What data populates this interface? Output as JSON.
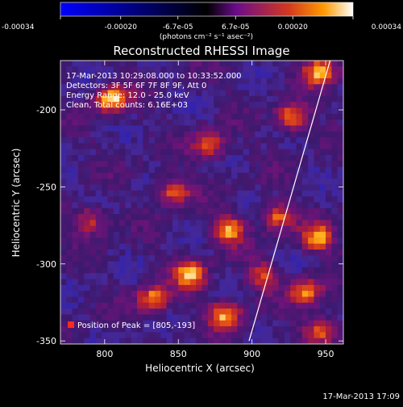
{
  "colorbar": {
    "tick_labels": [
      "-0.00034",
      "-0.00020",
      "-6.7e-05",
      "6.7e-05",
      "0.00020",
      "0.00034"
    ],
    "tick_values": [
      -0.00034,
      -0.0002,
      -6.7e-05,
      6.7e-05,
      0.0002,
      0.00034
    ],
    "range": [
      -0.00034,
      0.00034
    ],
    "unit_label": "(photons cm⁻² s⁻¹ asec⁻²)",
    "colors": {
      "min": "#0000ff",
      "zero": "#000000",
      "mid_low": "#6a0c8a",
      "mid": "#d4381f",
      "high": "#ff9a00",
      "max": "#ffffff"
    }
  },
  "chart_data": {
    "type": "heatmap",
    "title": "Reconstructed RHESSI Image",
    "xlabel": "Heliocentric X (arcsec)",
    "ylabel": "Heliocentric Y (arcsec)",
    "xlim": [
      770,
      962
    ],
    "ylim": [
      -352,
      -168
    ],
    "x_ticks": [
      800,
      850,
      900,
      950
    ],
    "y_ticks": [
      -200,
      -250,
      -300,
      -350
    ],
    "limb_line": {
      "x": [
        898,
        953
      ],
      "y": [
        -350,
        -168
      ]
    },
    "peak_position": {
      "x": 805,
      "y": -193
    },
    "bright_regions": [
      {
        "x": 805,
        "y": -193,
        "level": 0.95
      },
      {
        "x": 946,
        "y": -175,
        "level": 0.92
      },
      {
        "x": 884,
        "y": -278,
        "level": 0.85
      },
      {
        "x": 858,
        "y": -307,
        "level": 0.88
      },
      {
        "x": 833,
        "y": -323,
        "level": 0.8
      },
      {
        "x": 882,
        "y": -333,
        "level": 0.82
      },
      {
        "x": 927,
        "y": -205,
        "level": 0.78
      },
      {
        "x": 945,
        "y": -283,
        "level": 0.8
      },
      {
        "x": 937,
        "y": -318,
        "level": 0.75
      },
      {
        "x": 947,
        "y": -343,
        "level": 0.7
      },
      {
        "x": 871,
        "y": -223,
        "level": 0.7
      },
      {
        "x": 847,
        "y": -253,
        "level": 0.72
      },
      {
        "x": 917,
        "y": -270,
        "level": 0.68
      },
      {
        "x": 790,
        "y": -272,
        "level": 0.6
      },
      {
        "x": 908,
        "y": -308,
        "level": 0.6
      }
    ],
    "info_lines": [
      "17-Mar-2013 10:29:08.000 to 10:33:52.000",
      "Detectors: 3F 5F 6F 7F 8F 9F, Att 0",
      "Energy Range: 12.0 - 25.0 keV",
      "Clean, Total counts: 6.16E+03"
    ],
    "peak_label": "Position of Peak = [805,-193]"
  },
  "footer": {
    "timestamp": "17-Mar-2013 17:09"
  }
}
